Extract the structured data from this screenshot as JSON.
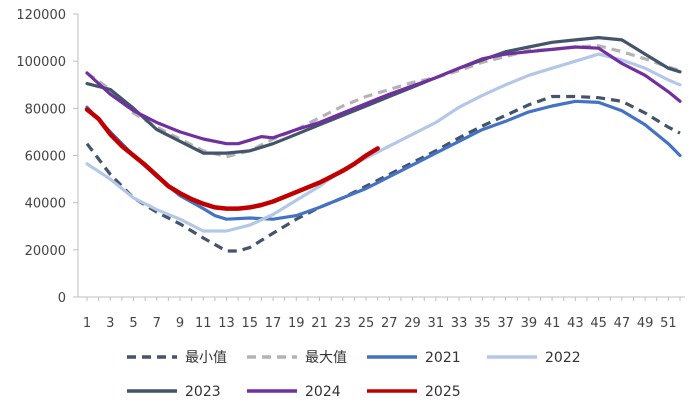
{
  "chart_data": {
    "type": "line",
    "title": "",
    "xlabel": "",
    "ylabel": "",
    "xlim": [
      1,
      52
    ],
    "ylim": [
      0,
      120000
    ],
    "yticks": [
      0,
      20000,
      40000,
      60000,
      80000,
      100000,
      120000
    ],
    "xticks": [
      1,
      3,
      5,
      7,
      9,
      11,
      13,
      15,
      17,
      19,
      21,
      23,
      25,
      27,
      29,
      31,
      33,
      35,
      37,
      39,
      41,
      43,
      45,
      47,
      49,
      51
    ],
    "grid": false,
    "legend_position": "bottom",
    "series": [
      {
        "name": "最小值",
        "color": "#44546a",
        "style": "dashed",
        "x": [
          1,
          3,
          5,
          7,
          9,
          11,
          13,
          14,
          15,
          17,
          19,
          21,
          23,
          25,
          27,
          29,
          31,
          33,
          35,
          37,
          39,
          41,
          43,
          45,
          47,
          49,
          51,
          52
        ],
        "values": [
          65000,
          52000,
          42000,
          36000,
          31000,
          25000,
          19500,
          19500,
          21000,
          27000,
          33000,
          38000,
          42000,
          47000,
          52000,
          57000,
          62000,
          67500,
          72500,
          77000,
          81500,
          85000,
          85000,
          84500,
          83000,
          78000,
          72000,
          69500
        ]
      },
      {
        "name": "最大值",
        "color": "#b4b4b4",
        "style": "dashed",
        "x": [
          1,
          3,
          5,
          7,
          9,
          11,
          13,
          15,
          17,
          19,
          21,
          23,
          25,
          27,
          29,
          31,
          33,
          35,
          37,
          39,
          41,
          43,
          45,
          47,
          49,
          51,
          52
        ],
        "values": [
          95000,
          88000,
          78000,
          72000,
          67000,
          62000,
          59500,
          62000,
          67000,
          71000,
          76000,
          81000,
          85000,
          88000,
          91000,
          93000,
          96000,
          99500,
          102000,
          104500,
          105000,
          106000,
          106500,
          104000,
          101000,
          97500,
          96000
        ]
      },
      {
        "name": "2021",
        "color": "#4472c4",
        "style": "solid",
        "x": [
          1,
          3,
          5,
          7,
          9,
          11,
          12,
          13,
          15,
          17,
          19,
          21,
          23,
          25,
          27,
          29,
          31,
          33,
          35,
          37,
          39,
          41,
          43,
          45,
          47,
          49,
          51,
          52
        ],
        "values": [
          80500,
          70000,
          60000,
          51000,
          43000,
          37500,
          34500,
          33000,
          33500,
          33000,
          34500,
          38000,
          42000,
          46000,
          51000,
          56000,
          61000,
          66000,
          71000,
          74500,
          78500,
          81000,
          83000,
          82500,
          79000,
          73000,
          65000,
          60000
        ]
      },
      {
        "name": "2022",
        "color": "#b4c7e7",
        "style": "solid",
        "x": [
          1,
          3,
          5,
          7,
          9,
          11,
          13,
          15,
          17,
          19,
          21,
          23,
          25,
          27,
          29,
          31,
          33,
          35,
          37,
          39,
          41,
          43,
          45,
          47,
          49,
          51,
          52
        ],
        "values": [
          56500,
          50000,
          42000,
          37000,
          33000,
          28000,
          28000,
          30500,
          35000,
          41000,
          47000,
          54000,
          59000,
          64000,
          69000,
          74000,
          80500,
          85500,
          90000,
          94000,
          97000,
          100000,
          103000,
          100500,
          97000,
          92000,
          90000
        ]
      },
      {
        "name": "2023",
        "color": "#44546a",
        "style": "solid",
        "x": [
          1,
          3,
          5,
          7,
          9,
          11,
          13,
          15,
          17,
          19,
          21,
          23,
          25,
          27,
          29,
          31,
          33,
          35,
          37,
          39,
          41,
          43,
          45,
          47,
          49,
          51,
          52
        ],
        "values": [
          90500,
          88000,
          80000,
          71000,
          66000,
          61000,
          61000,
          62000,
          65000,
          69000,
          73000,
          77000,
          81000,
          85000,
          89000,
          93000,
          97000,
          100500,
          104000,
          106000,
          108000,
          109000,
          110000,
          109000,
          103000,
          97000,
          95500
        ]
      },
      {
        "name": "2024",
        "color": "#7030a0",
        "style": "solid",
        "x": [
          1,
          3,
          5,
          7,
          9,
          11,
          13,
          14,
          15,
          16,
          17,
          19,
          21,
          23,
          25,
          27,
          29,
          31,
          33,
          35,
          37,
          39,
          41,
          43,
          45,
          47,
          49,
          51,
          52
        ],
        "values": [
          95000,
          86000,
          79000,
          74000,
          70000,
          67000,
          65000,
          65000,
          66500,
          68000,
          67500,
          71000,
          74000,
          78000,
          82000,
          86000,
          89500,
          93000,
          97000,
          101000,
          103000,
          104000,
          105000,
          106000,
          105500,
          99000,
          94000,
          87000,
          83000
        ]
      },
      {
        "name": "2025",
        "color": "#c00000",
        "style": "solid",
        "x": [
          1,
          2,
          3,
          4,
          5,
          6,
          7,
          8,
          9,
          10,
          11,
          12,
          13,
          14,
          15,
          16,
          17,
          18,
          19,
          20,
          21,
          22,
          23,
          24,
          25,
          26
        ],
        "values": [
          79500,
          75500,
          69000,
          64000,
          60000,
          56000,
          51500,
          47000,
          44000,
          41500,
          39500,
          38000,
          37500,
          37500,
          38000,
          39000,
          40500,
          42500,
          44500,
          46500,
          48500,
          51000,
          53500,
          56500,
          60000,
          63000
        ]
      }
    ]
  }
}
